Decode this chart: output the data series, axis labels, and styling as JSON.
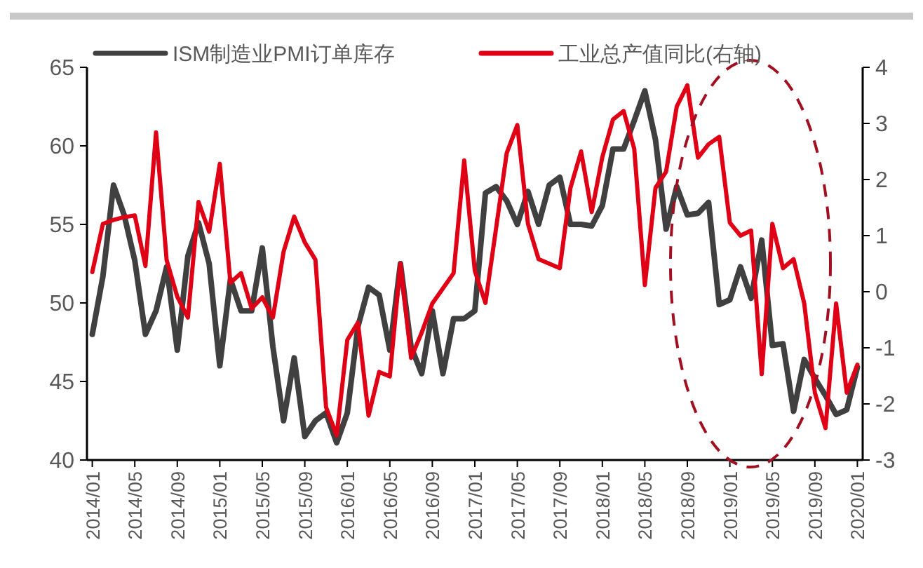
{
  "chart_data": {
    "type": "line",
    "categories": [
      "2014/01",
      null,
      null,
      null,
      "2014/05",
      null,
      null,
      null,
      "2014/09",
      null,
      null,
      null,
      "2015/01",
      null,
      null,
      null,
      "2015/05",
      null,
      null,
      null,
      "2015/09",
      null,
      null,
      null,
      "2016/01",
      null,
      null,
      null,
      "2016/05",
      null,
      null,
      null,
      "2016/09",
      null,
      null,
      null,
      "2017/01",
      null,
      null,
      null,
      "2017/05",
      null,
      null,
      null,
      "2017/09",
      null,
      null,
      null,
      "2018/01",
      null,
      null,
      null,
      "2018/05",
      null,
      null,
      null,
      "2018/09",
      null,
      null,
      null,
      "2019/01",
      null,
      null,
      null,
      "2019/05",
      null,
      null,
      null,
      "2019/09",
      null,
      null,
      null,
      "2020/01"
    ],
    "series": [
      {
        "name": "ISM制造业PMI订单库存",
        "color": "#404040",
        "values": [
          48.0,
          51.7,
          57.5,
          55.6,
          52.7,
          48.0,
          49.5,
          52.3,
          47.0,
          53.0,
          55.1,
          52.5,
          46.0,
          51.5,
          49.5,
          49.5,
          53.5,
          47.2,
          42.5,
          46.5,
          41.5,
          42.5,
          43.0,
          41.1,
          43.0,
          48.5,
          51.0,
          50.5,
          47.0,
          52.5,
          47.2,
          45.5,
          49.5,
          45.5,
          49.0,
          49.0,
          49.5,
          57.0,
          57.4,
          56.5,
          55.0,
          57.1,
          55.0,
          57.5,
          58.0,
          55.0,
          55.0,
          54.9,
          56.2,
          59.8,
          59.8,
          61.6,
          63.5,
          60.4,
          54.7,
          57.4,
          55.6,
          55.7,
          56.4,
          49.9,
          50.2,
          52.3,
          50.3,
          54.0,
          47.3,
          47.4,
          43.1,
          46.4,
          45.2,
          44.1,
          42.9,
          43.2,
          45.9
        ]
      },
      {
        "name": "工业总产值同比(右轴)",
        "color": "#e00016",
        "axis": "y2",
        "values": [
          0.35,
          1.21,
          1.28,
          1.33,
          1.36,
          0.46,
          2.84,
          0.56,
          -0.09,
          -0.46,
          1.6,
          1.07,
          2.28,
          0.16,
          0.33,
          -0.3,
          -0.1,
          -0.46,
          0.71,
          1.34,
          0.88,
          0.57,
          -2.06,
          -2.56,
          -0.86,
          -0.55,
          -2.21,
          -1.43,
          -1.51,
          0.5,
          -1.18,
          -0.73,
          -0.21,
          0.06,
          0.33,
          2.34,
          0.37,
          -0.2,
          1.13,
          2.47,
          2.97,
          1.21,
          0.58,
          0.5,
          0.42,
          1.85,
          2.5,
          1.42,
          2.4,
          3.07,
          3.22,
          2.55,
          0.12,
          1.85,
          2.14,
          3.3,
          3.68,
          2.39,
          2.63,
          2.76,
          1.23,
          1.0,
          1.09,
          -1.47,
          1.21,
          0.42,
          0.58,
          -0.21,
          -1.8,
          -2.43,
          -0.21,
          -1.8,
          -1.3
        ]
      }
    ],
    "ylim": [
      40,
      65
    ],
    "yticks": [
      40,
      45,
      50,
      55,
      60,
      65
    ],
    "y2lim": [
      -3,
      4
    ],
    "y2ticks": [
      -3,
      -2,
      -1,
      0,
      1,
      2,
      3,
      4
    ],
    "legend": "top",
    "grid": false,
    "marker": "none",
    "line_style": "solid"
  }
}
